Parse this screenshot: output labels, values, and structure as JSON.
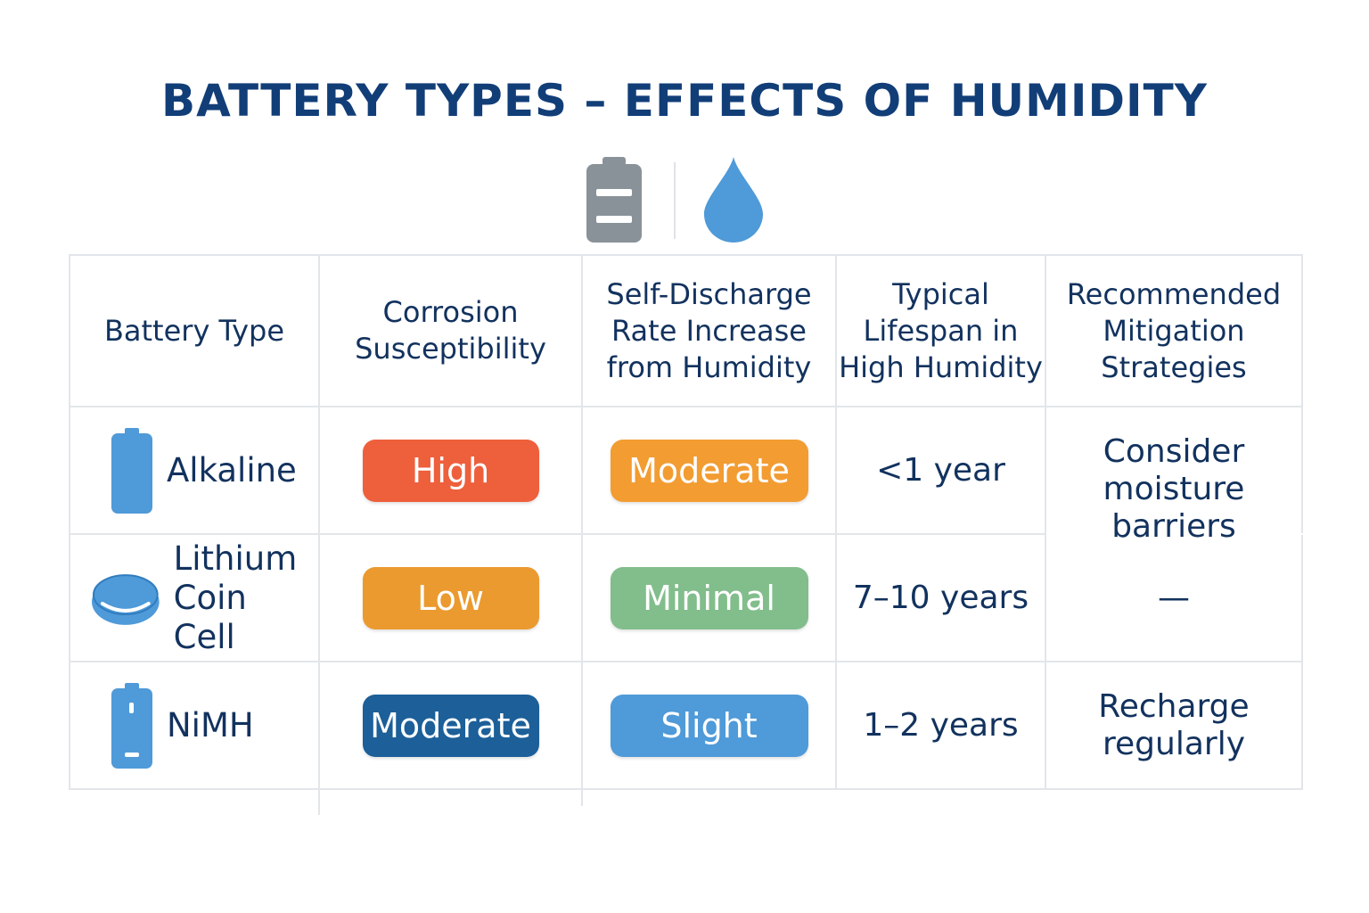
{
  "title": "BATTERY TYPES – EFFECTS OF HUMIDITY",
  "header_icons": [
    "battery-icon",
    "water-drop-icon"
  ],
  "colors": {
    "title": "#123e78",
    "text": "#12325e",
    "battery_icon": "#8a9299",
    "accent_blue": "#4f9ad8",
    "pill_red": "#ee5f3c",
    "pill_orange": "#eb9a2f",
    "pill_orange_light": "#f29c32",
    "pill_green": "#82bd8c",
    "pill_navy": "#1c5f99",
    "pill_blue": "#4f9ad8",
    "grid": "#e2e6ea"
  },
  "columns": [
    {
      "lines": [
        "Battery Type"
      ]
    },
    {
      "lines": [
        "Corrosion",
        "Susceptibility"
      ]
    },
    {
      "lines": [
        "Self-Discharge",
        "Rate Increase",
        "from Humidity"
      ]
    },
    {
      "lines": [
        "Typical",
        "Lifespan in",
        "High Humidity"
      ]
    },
    {
      "lines": [
        "Recommended",
        "Mitigation",
        "Strategies"
      ]
    }
  ],
  "rows": [
    {
      "icon": "cylinder-battery-icon",
      "type_lines": [
        "Alkaline"
      ],
      "corrosion": "High",
      "corrosion_color": "#ee5f3c",
      "self_discharge": "Moderate",
      "self_discharge_color": "#f29c32",
      "lifespan": "<1 year"
    },
    {
      "icon": "coin-cell-icon",
      "type_lines": [
        "Lithium",
        "Coin Cell"
      ],
      "corrosion": "Low",
      "corrosion_color": "#eb9a2f",
      "self_discharge": "Minimal",
      "self_discharge_color": "#82bd8c",
      "lifespan": "7–10 years"
    },
    {
      "icon": "rechargeable-battery-icon",
      "type_lines": [
        "NiMH"
      ],
      "corrosion": "Moderate",
      "corrosion_color": "#1c5f99",
      "self_discharge": "Slight",
      "self_discharge_color": "#4f9ad8",
      "lifespan": "1–2 years"
    }
  ],
  "mitigation": {
    "alkaline_lines": [
      "Consider",
      "moisture",
      "barriers"
    ],
    "lithium": "—",
    "nimh_lines": [
      "Recharge",
      "regularly"
    ]
  }
}
